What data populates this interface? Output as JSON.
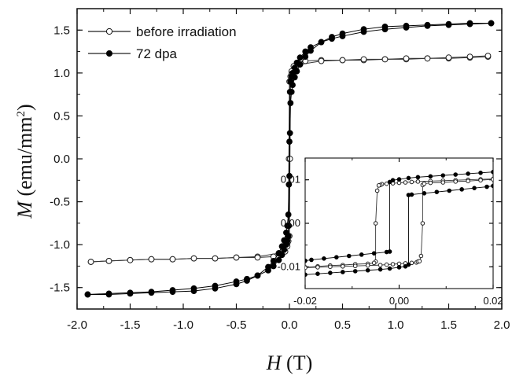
{
  "chart_data": {
    "type": "line",
    "xlabel_symbol": "H",
    "xlabel_unit": " (T)",
    "ylabel_symbol": "M",
    "ylabel_unit_pre": " (emu/mm",
    "ylabel_unit_sup": "2",
    "ylabel_unit_post": ")",
    "xlim": [
      -2.0,
      2.0
    ],
    "ylim": [
      -1.75,
      1.75
    ],
    "xticks": [
      "-2.0",
      "-1.5",
      "-1.0",
      "-0.5",
      "0.0",
      "0.5",
      "1.0",
      "1.5",
      "2.0"
    ],
    "yticks": [
      "-1.5",
      "-1.0",
      "-0.5",
      "0.0",
      "0.5",
      "1.0",
      "1.5"
    ],
    "legend_position": "top-left",
    "series": [
      {
        "name": "before irradiation",
        "marker": "open-circle",
        "color": "#1a1a1a",
        "descending": {
          "x": [
            1.87,
            1.7,
            1.5,
            1.3,
            1.1,
            0.9,
            0.7,
            0.5,
            0.3,
            0.15,
            0.08,
            0.04,
            0.02,
            0.01,
            0.0,
            -0.005,
            -0.01,
            -0.02,
            -0.05,
            -0.1,
            -0.3,
            -0.5,
            -0.7,
            -0.9,
            -1.1,
            -1.3,
            -1.5,
            -1.7,
            -1.87
          ],
          "y": [
            1.19,
            1.18,
            1.17,
            1.17,
            1.16,
            1.16,
            1.15,
            1.15,
            1.15,
            1.14,
            1.12,
            1.08,
            1.02,
            0.96,
            0.9,
            0.0,
            -0.9,
            -0.99,
            -1.06,
            -1.1,
            -1.14,
            -1.15,
            -1.16,
            -1.16,
            -1.17,
            -1.17,
            -1.18,
            -1.19,
            -1.2
          ]
        },
        "ascending": {
          "x": [
            -1.87,
            -1.7,
            -1.5,
            -1.3,
            -1.1,
            -0.9,
            -0.7,
            -0.5,
            -0.3,
            -0.15,
            -0.08,
            -0.04,
            -0.02,
            -0.01,
            0.0,
            0.005,
            0.01,
            0.02,
            0.05,
            0.1,
            0.3,
            0.5,
            0.7,
            0.9,
            1.1,
            1.3,
            1.5,
            1.7,
            1.87
          ],
          "y": [
            -1.2,
            -1.19,
            -1.18,
            -1.17,
            -1.17,
            -1.16,
            -1.16,
            -1.15,
            -1.15,
            -1.14,
            -1.12,
            -1.08,
            -1.02,
            -0.96,
            -0.9,
            0.0,
            0.9,
            0.99,
            1.06,
            1.1,
            1.14,
            1.15,
            1.16,
            1.16,
            1.17,
            1.17,
            1.18,
            1.19,
            1.2
          ]
        }
      },
      {
        "name": "72 dpa",
        "marker": "filled-circle",
        "color": "#000000",
        "descending": {
          "x": [
            1.9,
            1.7,
            1.5,
            1.3,
            1.1,
            0.9,
            0.7,
            0.5,
            0.4,
            0.3,
            0.2,
            0.15,
            0.1,
            0.07,
            0.05,
            0.03,
            0.02,
            0.01,
            0.005,
            0.0,
            -0.005,
            -0.01,
            -0.02,
            -0.03,
            -0.05,
            -0.07,
            -0.1,
            -0.15,
            -0.2,
            -0.3,
            -0.4,
            -0.5,
            -0.7,
            -0.9,
            -1.1,
            -1.3,
            -1.5,
            -1.7,
            -1.9
          ],
          "y": [
            1.58,
            1.57,
            1.56,
            1.55,
            1.53,
            1.51,
            1.48,
            1.43,
            1.4,
            1.36,
            1.3,
            1.25,
            1.18,
            1.12,
            1.06,
            1.0,
            0.96,
            0.9,
            0.78,
            0.2,
            -0.3,
            -0.65,
            -0.78,
            -0.86,
            -0.95,
            -1.02,
            -1.1,
            -1.19,
            -1.26,
            -1.36,
            -1.42,
            -1.46,
            -1.51,
            -1.54,
            -1.55,
            -1.56,
            -1.57,
            -1.58,
            -1.58
          ]
        },
        "ascending": {
          "x": [
            -1.9,
            -1.7,
            -1.5,
            -1.3,
            -1.1,
            -0.9,
            -0.7,
            -0.5,
            -0.4,
            -0.3,
            -0.2,
            -0.15,
            -0.1,
            -0.07,
            -0.05,
            -0.03,
            -0.02,
            -0.01,
            -0.005,
            0.0,
            0.005,
            0.01,
            0.02,
            0.03,
            0.05,
            0.07,
            0.1,
            0.15,
            0.2,
            0.3,
            0.4,
            0.5,
            0.7,
            0.9,
            1.1,
            1.3,
            1.5,
            1.7,
            1.9
          ],
          "y": [
            -1.58,
            -1.57,
            -1.56,
            -1.55,
            -1.53,
            -1.51,
            -1.48,
            -1.43,
            -1.4,
            -1.36,
            -1.3,
            -1.25,
            -1.18,
            -1.12,
            -1.06,
            -1.0,
            -0.96,
            -0.9,
            -0.78,
            -0.2,
            0.3,
            0.65,
            0.78,
            0.86,
            0.95,
            1.02,
            1.1,
            1.19,
            1.26,
            1.36,
            1.42,
            1.46,
            1.51,
            1.54,
            1.55,
            1.56,
            1.57,
            1.58,
            1.58
          ]
        }
      }
    ],
    "inset": {
      "xlim": [
        -0.03,
        0.03
      ],
      "ylim": [
        -0.015,
        0.015
      ],
      "xticks": [
        "-0.02",
        "0.00",
        "0.02"
      ],
      "yticks": [
        "-0.01",
        "0.00",
        "0.01"
      ],
      "series": [
        {
          "name": "before irradiation",
          "descending": {
            "x": [
              0.03,
              0.026,
              0.022,
              0.018,
              0.014,
              0.01,
              0.006,
              0.004,
              0.002,
              0.0,
              -0.002,
              -0.004,
              -0.0055,
              -0.006,
              -0.0065,
              -0.007,
              -0.0075,
              -0.0075,
              -0.008,
              -0.01,
              -0.014,
              -0.018,
              -0.022,
              -0.026,
              -0.03
            ],
            "y": [
              0.0102,
              0.0101,
              0.01,
              0.0099,
              0.0098,
              0.0097,
              0.0096,
              0.0095,
              0.0094,
              0.0093,
              0.0092,
              0.0091,
              0.009,
              0.0088,
              0.0087,
              0.0075,
              0.0,
              -0.0088,
              -0.0091,
              -0.0093,
              -0.0094,
              -0.0096,
              -0.0097,
              -0.0099,
              -0.0101
            ]
          },
          "ascending": {
            "x": [
              -0.03,
              -0.026,
              -0.022,
              -0.018,
              -0.014,
              -0.01,
              -0.006,
              -0.004,
              -0.002,
              0.0,
              0.002,
              0.004,
              0.0055,
              0.006,
              0.0065,
              0.007,
              0.0075,
              0.0075,
              0.008,
              0.01,
              0.014,
              0.018,
              0.022,
              0.026,
              0.03
            ],
            "y": [
              -0.0102,
              -0.0101,
              -0.01,
              -0.0099,
              -0.0098,
              -0.0097,
              -0.0096,
              -0.0095,
              -0.0094,
              -0.0093,
              -0.0092,
              -0.0091,
              -0.009,
              -0.0088,
              -0.0087,
              -0.0075,
              0.0,
              0.0088,
              0.0091,
              0.0093,
              0.0094,
              0.0096,
              0.0097,
              0.0099,
              0.0101
            ]
          }
        },
        {
          "name": "72 dpa",
          "descending": {
            "x": [
              0.03,
              0.026,
              0.022,
              0.018,
              0.014,
              0.01,
              0.006,
              0.003,
              0.0,
              -0.002,
              -0.003,
              -0.003,
              -0.004,
              -0.008,
              -0.012,
              -0.016,
              -0.02,
              -0.024,
              -0.028,
              -0.03
            ],
            "y": [
              0.0118,
              0.0116,
              0.0114,
              0.0112,
              0.011,
              0.0108,
              0.0106,
              0.0104,
              0.0101,
              0.0099,
              0.0095,
              -0.0065,
              -0.0066,
              -0.0069,
              -0.0072,
              -0.0075,
              -0.0078,
              -0.0081,
              -0.0084,
              -0.0086
            ]
          },
          "ascending": {
            "x": [
              -0.03,
              -0.026,
              -0.022,
              -0.018,
              -0.014,
              -0.01,
              -0.006,
              -0.003,
              0.0,
              0.002,
              0.003,
              0.003,
              0.004,
              0.008,
              0.012,
              0.016,
              0.02,
              0.024,
              0.028,
              0.03
            ],
            "y": [
              -0.0118,
              -0.0116,
              -0.0114,
              -0.0112,
              -0.011,
              -0.0108,
              -0.0106,
              -0.0104,
              -0.0101,
              -0.0099,
              -0.0095,
              0.0065,
              0.0066,
              0.0069,
              0.0072,
              0.0075,
              0.0078,
              0.0081,
              0.0084,
              0.0086
            ]
          }
        }
      ]
    }
  }
}
